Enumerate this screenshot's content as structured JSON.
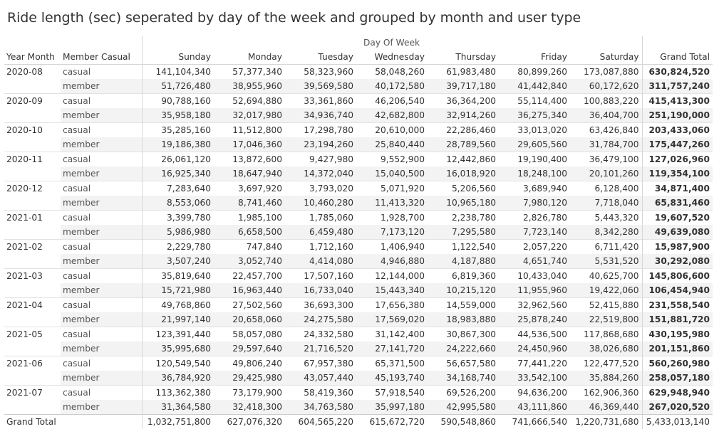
{
  "title": "Ride length (sec) seperated by day of the week and grouped by month and user type",
  "chart_data": {
    "type": "table",
    "column_group_label": "Day Of Week",
    "row_header_labels": [
      "Year Month",
      "Member Casual"
    ],
    "columns": [
      "Sunday",
      "Monday",
      "Tuesday",
      "Wednesday",
      "Thursday",
      "Friday",
      "Saturday",
      "Grand Total"
    ],
    "rows": [
      {
        "month": "2020-08",
        "type": "casual",
        "values": [
          "141,104,340",
          "57,377,340",
          "58,323,960",
          "58,048,260",
          "61,983,480",
          "80,899,260",
          "173,087,880",
          "630,824,520"
        ]
      },
      {
        "month": "2020-08",
        "type": "member",
        "values": [
          "51,726,480",
          "38,955,960",
          "39,569,580",
          "40,172,580",
          "39,717,180",
          "41,442,840",
          "60,172,620",
          "311,757,240"
        ]
      },
      {
        "month": "2020-09",
        "type": "casual",
        "values": [
          "90,788,160",
          "52,694,880",
          "33,361,860",
          "46,206,540",
          "36,364,200",
          "55,114,400",
          "100,883,220",
          "415,413,300"
        ]
      },
      {
        "month": "2020-09",
        "type": "member",
        "values": [
          "35,958,180",
          "32,017,980",
          "34,936,740",
          "42,682,800",
          "32,914,260",
          "36,275,340",
          "36,404,700",
          "251,190,000"
        ]
      },
      {
        "month": "2020-10",
        "type": "casual",
        "values": [
          "35,285,160",
          "11,512,800",
          "17,298,780",
          "20,610,000",
          "22,286,460",
          "33,013,020",
          "63,426,840",
          "203,433,060"
        ]
      },
      {
        "month": "2020-10",
        "type": "member",
        "values": [
          "19,186,380",
          "17,046,360",
          "23,194,260",
          "25,840,440",
          "28,789,560",
          "29,605,560",
          "31,784,700",
          "175,447,260"
        ]
      },
      {
        "month": "2020-11",
        "type": "casual",
        "values": [
          "26,061,120",
          "13,872,600",
          "9,427,980",
          "9,552,900",
          "12,442,860",
          "19,190,400",
          "36,479,100",
          "127,026,960"
        ]
      },
      {
        "month": "2020-11",
        "type": "member",
        "values": [
          "16,925,340",
          "18,647,940",
          "14,372,040",
          "15,040,500",
          "16,018,920",
          "18,248,100",
          "20,101,260",
          "119,354,100"
        ]
      },
      {
        "month": "2020-12",
        "type": "casual",
        "values": [
          "7,283,640",
          "3,697,920",
          "3,793,020",
          "5,071,920",
          "5,206,560",
          "3,689,940",
          "6,128,400",
          "34,871,400"
        ]
      },
      {
        "month": "2020-12",
        "type": "member",
        "values": [
          "8,553,060",
          "8,741,460",
          "10,460,280",
          "11,413,320",
          "10,965,180",
          "7,980,120",
          "7,718,040",
          "65,831,460"
        ]
      },
      {
        "month": "2021-01",
        "type": "casual",
        "values": [
          "3,399,780",
          "1,985,100",
          "1,785,060",
          "1,928,700",
          "2,238,780",
          "2,826,780",
          "5,443,320",
          "19,607,520"
        ]
      },
      {
        "month": "2021-01",
        "type": "member",
        "values": [
          "5,986,980",
          "6,658,500",
          "6,459,480",
          "7,173,120",
          "7,295,580",
          "7,723,140",
          "8,342,280",
          "49,639,080"
        ]
      },
      {
        "month": "2021-02",
        "type": "casual",
        "values": [
          "2,229,780",
          "747,840",
          "1,712,160",
          "1,406,940",
          "1,122,540",
          "2,057,220",
          "6,711,420",
          "15,987,900"
        ]
      },
      {
        "month": "2021-02",
        "type": "member",
        "values": [
          "3,507,240",
          "3,052,740",
          "4,414,080",
          "4,946,880",
          "4,187,880",
          "4,651,740",
          "5,531,520",
          "30,292,080"
        ]
      },
      {
        "month": "2021-03",
        "type": "casual",
        "values": [
          "35,819,640",
          "22,457,700",
          "17,507,160",
          "12,144,000",
          "6,819,360",
          "10,433,040",
          "40,625,700",
          "145,806,600"
        ]
      },
      {
        "month": "2021-03",
        "type": "member",
        "values": [
          "15,721,980",
          "16,963,440",
          "16,733,040",
          "15,443,340",
          "10,215,120",
          "11,955,960",
          "19,422,060",
          "106,454,940"
        ]
      },
      {
        "month": "2021-04",
        "type": "casual",
        "values": [
          "49,768,860",
          "27,502,560",
          "36,693,300",
          "17,656,380",
          "14,559,000",
          "32,962,560",
          "52,415,880",
          "231,558,540"
        ]
      },
      {
        "month": "2021-04",
        "type": "member",
        "values": [
          "21,997,140",
          "20,658,060",
          "24,275,580",
          "17,569,020",
          "18,983,880",
          "25,878,240",
          "22,519,800",
          "151,881,720"
        ]
      },
      {
        "month": "2021-05",
        "type": "casual",
        "values": [
          "123,391,440",
          "58,057,080",
          "24,332,580",
          "31,142,400",
          "30,867,300",
          "44,536,500",
          "117,868,680",
          "430,195,980"
        ]
      },
      {
        "month": "2021-05",
        "type": "member",
        "values": [
          "35,995,680",
          "29,597,640",
          "21,716,520",
          "27,141,720",
          "24,222,660",
          "24,450,960",
          "38,026,680",
          "201,151,860"
        ]
      },
      {
        "month": "2021-06",
        "type": "casual",
        "values": [
          "120,549,540",
          "49,806,240",
          "67,957,380",
          "65,371,500",
          "56,657,580",
          "77,441,220",
          "122,477,520",
          "560,260,980"
        ]
      },
      {
        "month": "2021-06",
        "type": "member",
        "values": [
          "36,784,920",
          "29,425,980",
          "43,057,440",
          "45,193,740",
          "34,168,740",
          "33,542,100",
          "35,884,260",
          "258,057,180"
        ]
      },
      {
        "month": "2021-07",
        "type": "casual",
        "values": [
          "113,362,380",
          "73,179,900",
          "58,419,360",
          "57,918,540",
          "69,526,200",
          "94,636,200",
          "162,906,360",
          "629,948,940"
        ]
      },
      {
        "month": "2021-07",
        "type": "member",
        "values": [
          "31,364,580",
          "32,418,300",
          "34,763,580",
          "35,997,180",
          "42,995,580",
          "43,111,860",
          "46,369,440",
          "267,020,520"
        ]
      }
    ],
    "grand_total": {
      "label": "Grand Total",
      "values": [
        "1,032,751,800",
        "627,076,320",
        "604,565,220",
        "615,672,720",
        "590,548,860",
        "741,666,540",
        "1,220,731,680",
        "5,433,013,140"
      ]
    }
  }
}
